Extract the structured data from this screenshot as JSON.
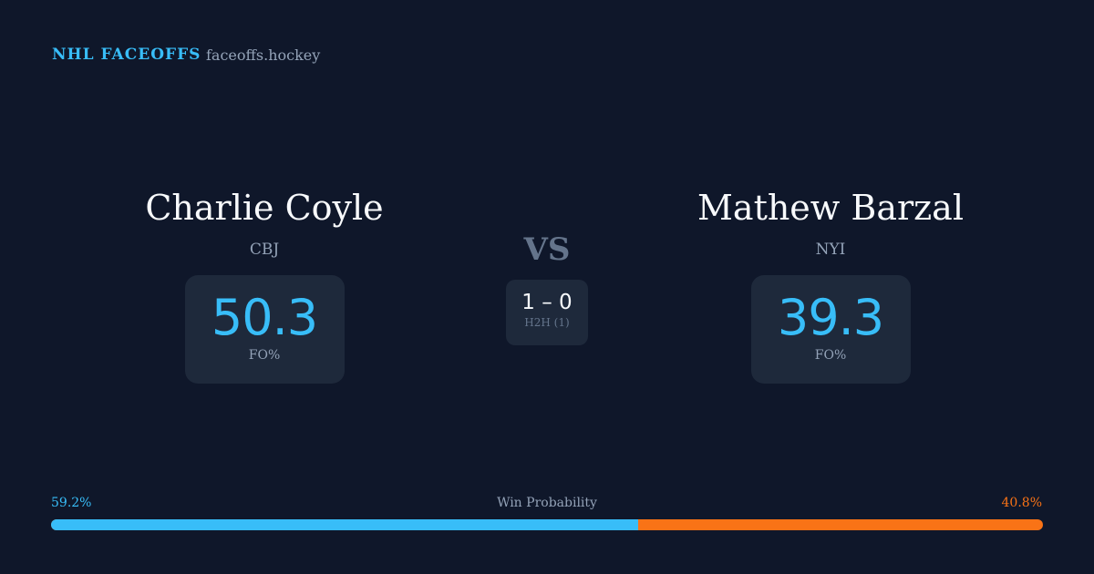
{
  "header": {
    "brand": "NHL FACEOFFS",
    "domain": "faceoffs.hockey"
  },
  "left": {
    "name": "Charlie Coyle",
    "team": "CBJ",
    "fo_pct": "50.3",
    "fo_label": "FO%"
  },
  "right": {
    "name": "Mathew Barzal",
    "team": "NYI",
    "fo_pct": "39.3",
    "fo_label": "FO%"
  },
  "vs": "VS",
  "h2h": {
    "score": "1 – 0",
    "label": "H2H (1)"
  },
  "win_probability": {
    "label": "Win Probability",
    "left": "59.2%",
    "right": "40.8%",
    "left_value": 59.2,
    "colors": {
      "left": "#38bdf8",
      "right": "#f97316"
    }
  }
}
